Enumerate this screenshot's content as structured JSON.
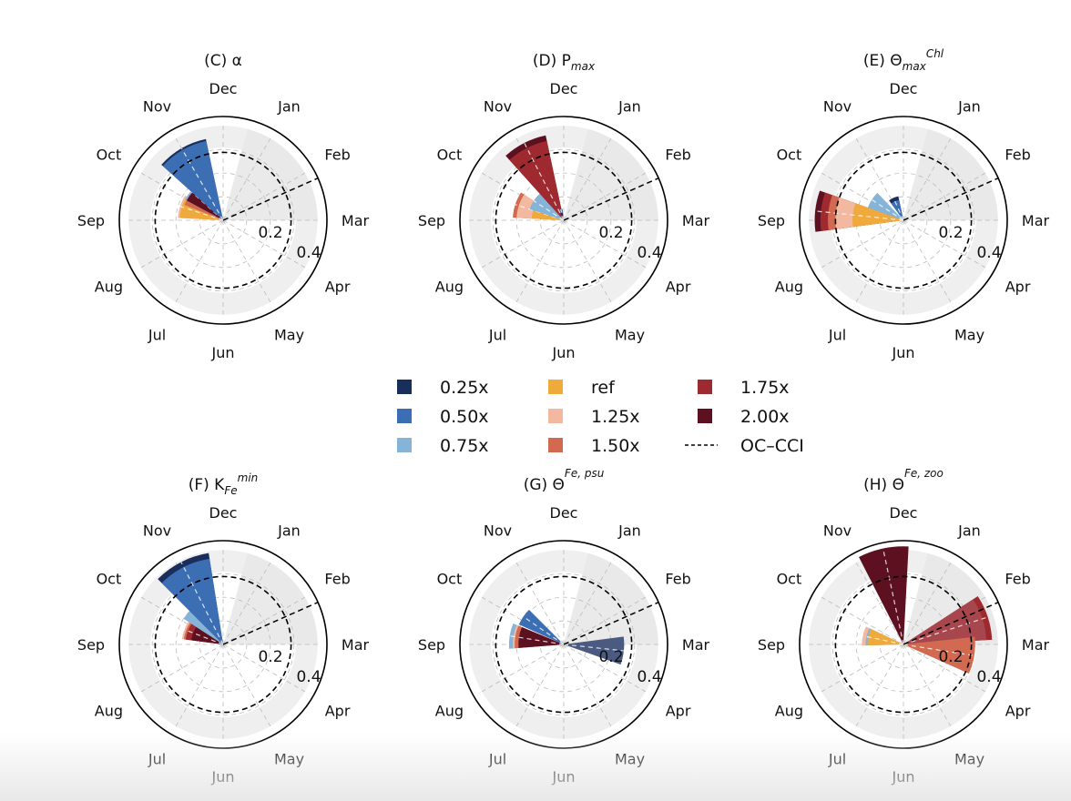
{
  "figure": {
    "month_labels": [
      "Jan",
      "Feb",
      "Mar",
      "Apr",
      "May",
      "Jun",
      "Jul",
      "Aug",
      "Sep",
      "Oct",
      "Nov",
      "Dec"
    ],
    "radial_tick_labels": [
      "0.2",
      "0.4"
    ],
    "rmax": 0.55,
    "shaded_wedge_months": [
      "Dec",
      "Jan",
      "Feb",
      "Mar"
    ],
    "obs_dashed_radius": 0.36,
    "colors": {
      "grid": "#bbbbbb",
      "shade": "#e8e8e8",
      "ring": "#efefef",
      "edge": "#000000"
    }
  },
  "legend": {
    "placement": "center",
    "entries": [
      {
        "label": "0.25x",
        "color": "#1a2e5c"
      },
      {
        "label": "0.50x",
        "color": "#3c6eb4"
      },
      {
        "label": "0.75x",
        "color": "#85b4d8"
      },
      {
        "label": "ref",
        "color": "#f0a93b"
      },
      {
        "label": "1.25x",
        "color": "#f2b9a0"
      },
      {
        "label": "1.50x",
        "color": "#d26a52"
      },
      {
        "label": "1.75x",
        "color": "#9e2a2f"
      },
      {
        "label": "2.00x",
        "color": "#5c1020"
      },
      {
        "label": "OC–CCI",
        "color": "#000000",
        "style": "dashed"
      }
    ]
  },
  "chart_data": [
    {
      "type": "polar-bar",
      "title": "(C) α",
      "title_parts": [
        {
          "t": "(C) α"
        }
      ],
      "bars": [
        {
          "month": 8.6,
          "width": 1.0,
          "stack": [
            {
              "v": 0.24,
              "c": "#f2b9a0"
            },
            {
              "v": 0.23,
              "c": "#f0a93b"
            }
          ]
        },
        {
          "month": 9.0,
          "width": 0.55,
          "stack": [
            {
              "v": 0.22,
              "c": "#d26a52"
            }
          ]
        },
        {
          "month": 9.4,
          "width": 0.9,
          "stack": [
            {
              "v": 0.23,
              "c": "#85b4d8"
            },
            {
              "v": 0.22,
              "c": "#5c1020"
            }
          ]
        },
        {
          "month": 10.0,
          "width": 1.2,
          "stack": [
            {
              "v": 0.44,
              "c": "#1a2e5c"
            },
            {
              "v": 0.43,
              "c": "#3c6eb4"
            }
          ]
        }
      ]
    },
    {
      "type": "polar-bar",
      "title": "(D) Pmax",
      "title_parts": [
        {
          "t": "(D) P"
        },
        {
          "t": "max",
          "sub": true
        }
      ],
      "bars": [
        {
          "month": 8.6,
          "width": 1.0,
          "stack": [
            {
              "v": 0.27,
              "c": "#d26a52"
            },
            {
              "v": 0.25,
              "c": "#f2b9a0"
            },
            {
              "v": 0.17,
              "c": "#f0a93b"
            }
          ]
        },
        {
          "month": 9.1,
          "width": 1.0,
          "stack": [
            {
              "v": 0.19,
              "c": "#85b4d8"
            }
          ]
        },
        {
          "month": 10.1,
          "width": 1.0,
          "stack": [
            {
              "v": 0.46,
              "c": "#5c1020"
            },
            {
              "v": 0.43,
              "c": "#9e2a2f"
            }
          ]
        },
        {
          "month": 10.5,
          "width": 0.6,
          "stack": [
            {
              "v": 0.06,
              "c": "#3c6eb4"
            },
            {
              "v": 0.04,
              "c": "#1a2e5c"
            }
          ]
        }
      ]
    },
    {
      "type": "polar-bar",
      "title": "(E) ΘChlmax",
      "title_parts": [
        {
          "t": "(E) Θ"
        },
        {
          "t": "max",
          "sub": true
        },
        {
          "t": "Chl",
          "sup": true
        }
      ],
      "bars": [
        {
          "month": 8.2,
          "width": 0.9,
          "stack": [
            {
              "v": 0.47,
              "c": "#5c1020"
            },
            {
              "v": 0.44,
              "c": "#9e2a2f"
            },
            {
              "v": 0.4,
              "c": "#d26a52"
            },
            {
              "v": 0.36,
              "c": "#f2b9a0"
            },
            {
              "v": 0.27,
              "c": "#f0a93b"
            }
          ]
        },
        {
          "month": 9.1,
          "width": 0.9,
          "stack": [
            {
              "v": 0.2,
              "c": "#85b4d8"
            }
          ]
        },
        {
          "month": 10.2,
          "width": 0.8,
          "stack": [
            {
              "v": 0.13,
              "c": "#1a2e5c"
            },
            {
              "v": 0.11,
              "c": "#3c6eb4"
            }
          ]
        }
      ]
    },
    {
      "type": "polar-bar",
      "title": "(F) KminFe",
      "title_parts": [
        {
          "t": "(F) K"
        },
        {
          "t": "Fe",
          "sub": true
        },
        {
          "t": "min",
          "sup": true
        }
      ],
      "bars": [
        {
          "month": 8.7,
          "width": 0.9,
          "stack": [
            {
              "v": 0.22,
              "c": "#f2b9a0"
            },
            {
              "v": 0.21,
              "c": "#d26a52"
            },
            {
              "v": 0.2,
              "c": "#9e2a2f"
            },
            {
              "v": 0.17,
              "c": "#5c1020"
            }
          ]
        },
        {
          "month": 9.6,
          "width": 1.0,
          "stack": [
            {
              "v": 0.25,
              "c": "#85b4d8"
            }
          ]
        },
        {
          "month": 10.1,
          "width": 1.2,
          "stack": [
            {
              "v": 0.49,
              "c": "#1a2e5c"
            },
            {
              "v": 0.46,
              "c": "#3c6eb4"
            }
          ]
        }
      ]
    },
    {
      "type": "polar-bar",
      "title": "(G) ΘFe, psu",
      "title_parts": [
        {
          "t": "(G) Θ"
        },
        {
          "t": "Fe, psu",
          "sup": true
        }
      ],
      "bars": [
        {
          "month": 8.3,
          "width": 0.9,
          "stack": [
            {
              "v": 0.29,
              "c": "#85b4d8"
            },
            {
              "v": 0.27,
              "c": "#f2b9a0"
            },
            {
              "v": 0.26,
              "c": "#d26a52"
            },
            {
              "v": 0.24,
              "c": "#5c1020"
            }
          ]
        },
        {
          "month": 9.15,
          "width": 0.7,
          "stack": [
            {
              "v": 0.26,
              "c": "#3c6eb4"
            }
          ]
        },
        {
          "month": 2.2,
          "width": 0.9,
          "stack": [
            {
              "v": 0.32,
              "c": "#4a5a80"
            }
          ]
        }
      ]
    },
    {
      "type": "polar-bar",
      "title": "(H) ΘFe, zoo",
      "title_parts": [
        {
          "t": "(H) Θ"
        },
        {
          "t": "Fe, zoo",
          "sup": true
        }
      ],
      "bars": [
        {
          "month": 8.4,
          "width": 0.9,
          "stack": [
            {
              "v": 0.22,
              "c": "#f2b9a0"
            },
            {
              "v": 0.2,
              "c": "#85b4d8"
            },
            {
              "v": 0.19,
              "c": "#f0a93b"
            }
          ]
        },
        {
          "month": 1.4,
          "width": 1.0,
          "stack": [
            {
              "v": 0.47,
              "c": "#9e2a2f"
            },
            {
              "v": 0.44,
              "c": "#a8464d"
            }
          ]
        },
        {
          "month": 2.3,
          "width": 1.0,
          "stack": [
            {
              "v": 0.38,
              "c": "#d26a52"
            }
          ]
        },
        {
          "month": 10.6,
          "width": 1.0,
          "stack": [
            {
              "v": 0.52,
              "c": "#5c1020"
            }
          ]
        }
      ]
    }
  ]
}
